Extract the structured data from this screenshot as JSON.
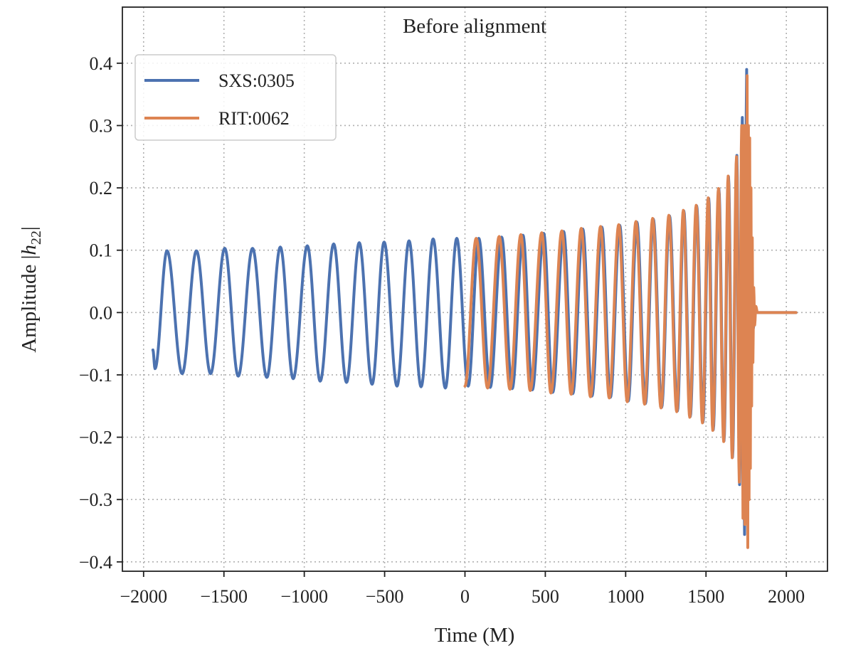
{
  "chart_data": {
    "type": "line",
    "title": "Before alignment",
    "xlabel": "Time (M)",
    "ylabel": {
      "prefix": "Amplitude |",
      "var": "h",
      "sub": "22",
      "suffix": "|"
    },
    "xlim": [
      -2132,
      2256
    ],
    "ylim": [
      -0.415,
      0.49
    ],
    "xticks": [
      -2000,
      -1500,
      -1000,
      -500,
      0,
      500,
      1000,
      1500,
      2000
    ],
    "xtick_labels": [
      "−2000",
      "−1500",
      "−1000",
      "−500",
      "0",
      "500",
      "1000",
      "1500",
      "2000"
    ],
    "yticks": [
      -0.4,
      -0.3,
      -0.2,
      -0.1,
      0.0,
      0.1,
      0.2,
      0.3,
      0.4
    ],
    "ytick_labels": [
      "−0.4",
      "−0.3",
      "−0.2",
      "−0.1",
      "0.0",
      "0.1",
      "0.2",
      "0.3",
      "0.4"
    ],
    "grid": true,
    "legend_position": "top-left",
    "series": [
      {
        "name": "SXS:0305",
        "color": "#4c72b0",
        "extrema": [
          [
            -1942,
            -0.06
          ],
          [
            -1929,
            -0.09
          ],
          [
            -1854,
            0.099
          ],
          [
            -1760,
            -0.098
          ],
          [
            -1671,
            0.099
          ],
          [
            -1583,
            -0.098
          ],
          [
            -1495,
            0.103
          ],
          [
            -1411,
            -0.102
          ],
          [
            -1322,
            0.103
          ],
          [
            -1233,
            -0.104
          ],
          [
            -1149,
            0.105
          ],
          [
            -1069,
            -0.106
          ],
          [
            -981,
            0.107
          ],
          [
            -901,
            -0.11
          ],
          [
            -817,
            0.11
          ],
          [
            -737,
            -0.112
          ],
          [
            -658,
            0.112
          ],
          [
            -578,
            -0.115
          ],
          [
            -503,
            0.113
          ],
          [
            -423,
            -0.118
          ],
          [
            -348,
            0.115
          ],
          [
            -273,
            -0.119
          ],
          [
            -198,
            0.118
          ],
          [
            -122,
            -0.121
          ],
          [
            -51,
            0.119
          ],
          [
            20,
            -0.118
          ],
          [
            86,
            0.119
          ],
          [
            157,
            -0.12
          ],
          [
            228,
            0.121
          ],
          [
            294,
            -0.122
          ],
          [
            361,
            0.124
          ],
          [
            419,
            -0.124
          ],
          [
            490,
            0.127
          ],
          [
            546,
            -0.128
          ],
          [
            614,
            0.13
          ],
          [
            671,
            -0.13
          ],
          [
            733,
            0.134
          ],
          [
            790,
            -0.134
          ],
          [
            852,
            0.137
          ],
          [
            905,
            -0.136
          ],
          [
            963,
            0.14
          ],
          [
            1016,
            -0.142
          ],
          [
            1070,
            0.145
          ],
          [
            1123,
            -0.146
          ],
          [
            1172,
            0.15
          ],
          [
            1224,
            -0.152
          ],
          [
            1273,
            0.155
          ],
          [
            1322,
            -0.158
          ],
          [
            1362,
            0.163
          ],
          [
            1402,
            -0.167
          ],
          [
            1442,
            0.171
          ],
          [
            1481,
            -0.176
          ],
          [
            1517,
            0.183
          ],
          [
            1545,
            -0.188
          ],
          [
            1580,
            0.198
          ],
          [
            1612,
            -0.206
          ],
          [
            1640,
            0.218
          ],
          [
            1665,
            -0.232
          ],
          [
            1692,
            0.252
          ],
          [
            1709,
            -0.276
          ],
          [
            1726,
            0.313
          ],
          [
            1740,
            -0.356
          ],
          [
            1753,
            0.39
          ],
          [
            1762,
            -0.3
          ],
          [
            1770,
            0.2
          ],
          [
            1778,
            -0.12
          ],
          [
            1786,
            0.06
          ],
          [
            1795,
            -0.025
          ],
          [
            1805,
            0.008
          ],
          [
            1820,
            0
          ],
          [
            2060,
            0
          ]
        ]
      },
      {
        "name": "RIT:0062",
        "color": "#dd8452",
        "extrema": [
          [
            0,
            -0.118
          ],
          [
            70,
            0.119
          ],
          [
            141,
            -0.121
          ],
          [
            213,
            0.122
          ],
          [
            280,
            -0.123
          ],
          [
            348,
            0.125
          ],
          [
            406,
            -0.125
          ],
          [
            478,
            0.128
          ],
          [
            535,
            -0.129
          ],
          [
            603,
            0.131
          ],
          [
            661,
            -0.131
          ],
          [
            724,
            0.135
          ],
          [
            781,
            -0.135
          ],
          [
            844,
            0.138
          ],
          [
            898,
            -0.137
          ],
          [
            957,
            0.141
          ],
          [
            1010,
            -0.143
          ],
          [
            1064,
            0.146
          ],
          [
            1118,
            -0.147
          ],
          [
            1168,
            0.151
          ],
          [
            1220,
            -0.153
          ],
          [
            1269,
            0.156
          ],
          [
            1318,
            -0.159
          ],
          [
            1359,
            0.164
          ],
          [
            1399,
            -0.168
          ],
          [
            1439,
            0.172
          ],
          [
            1478,
            -0.177
          ],
          [
            1514,
            0.184
          ],
          [
            1542,
            -0.189
          ],
          [
            1578,
            0.199
          ],
          [
            1610,
            -0.207
          ],
          [
            1638,
            0.219
          ],
          [
            1663,
            -0.233
          ],
          [
            1690,
            0.25
          ],
          [
            1707,
            -0.272
          ],
          [
            1722,
            0.3
          ],
          [
            1730,
            -0.33
          ],
          [
            1736,
            0.3
          ],
          [
            1742,
            -0.34
          ],
          [
            1748,
            0.3
          ],
          [
            1753,
            -0.3
          ],
          [
            1756,
            0.38
          ],
          [
            1760,
            -0.377
          ],
          [
            1764,
            0.3
          ],
          [
            1768,
            -0.3
          ],
          [
            1772,
            0.28
          ],
          [
            1776,
            -0.25
          ],
          [
            1780,
            0.2
          ],
          [
            1784,
            -0.15
          ],
          [
            1788,
            0.12
          ],
          [
            1792,
            -0.08
          ],
          [
            1797,
            0.04
          ],
          [
            1803,
            -0.02
          ],
          [
            1810,
            0.01
          ],
          [
            1820,
            0
          ],
          [
            2060,
            0
          ]
        ]
      }
    ]
  }
}
